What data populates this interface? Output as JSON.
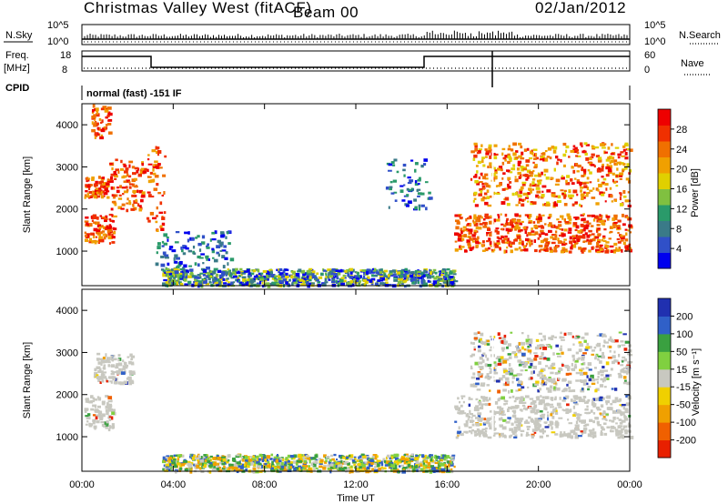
{
  "header": {
    "title": "Christmas Valley West (fitACF)",
    "beam": "Beam 00",
    "date": "02/Jan/2012"
  },
  "mini_panels": {
    "nsky_label": "N.Sky",
    "nsky_ticks": [
      "10^5",
      "10^0"
    ],
    "nsearch_label": "N.Search",
    "nsearch_ticks": [
      "10^5",
      "10^0"
    ],
    "freq_label_1": "Freq.",
    "freq_label_2": "[MHz]",
    "freq_ticks": [
      "18",
      "8"
    ],
    "nave_label": "Nave",
    "nave_ticks": [
      "60",
      "0"
    ],
    "cpid_label": "CPID",
    "cpid_text": "normal (fast) -151 IF"
  },
  "colorbars": {
    "power": {
      "label": "Power [dB]",
      "ticks": [
        "28",
        "24",
        "20",
        "16",
        "12",
        "8",
        "4"
      ],
      "colors": [
        "#0000ee",
        "#3050c8",
        "#3a7a88",
        "#2a9a6a",
        "#80c040",
        "#e0d000",
        "#f0a000",
        "#f07000",
        "#f03000",
        "#ee0000"
      ]
    },
    "velocity": {
      "label": "Velocity [m s⁻¹]",
      "ticks": [
        "200",
        "100",
        "50",
        "15",
        "-15",
        "-50",
        "-100",
        "-200"
      ],
      "colors": [
        "#2030b0",
        "#3060c8",
        "#3aa040",
        "#80d040",
        "#c8c8c0",
        "#f0d000",
        "#f0a000",
        "#f06000",
        "#e82000"
      ]
    }
  },
  "chart_data": [
    {
      "type": "heatmap",
      "name": "power",
      "xlabel": "",
      "ylabel": "Slant Range [km]",
      "xlim": [
        0,
        24
      ],
      "ylim": [
        180,
        4500
      ],
      "yticks": [
        "1000",
        "2000",
        "3000",
        "4000"
      ],
      "regions": [
        {
          "t": [
            0.1,
            1.4
          ],
          "r": [
            1200,
            1900
          ],
          "kind": "band"
        },
        {
          "t": [
            0.1,
            1.2
          ],
          "r": [
            2300,
            2800
          ],
          "kind": "band"
        },
        {
          "t": [
            0.4,
            1.2
          ],
          "r": [
            3700,
            4500
          ],
          "kind": "band"
        },
        {
          "t": [
            1.2,
            2.7
          ],
          "r": [
            2000,
            3200
          ],
          "kind": "band"
        },
        {
          "t": [
            2.8,
            3.6
          ],
          "r": [
            1500,
            3500
          ],
          "kind": "band"
        },
        {
          "t": [
            3.2,
            6.5
          ],
          "r": [
            500,
            1500
          ],
          "kind": "weak"
        },
        {
          "t": [
            13.3,
            15.2
          ],
          "r": [
            2000,
            3200
          ],
          "kind": "weak"
        },
        {
          "t": [
            16.3,
            24.0
          ],
          "r": [
            1000,
            1900
          ],
          "kind": "band"
        },
        {
          "t": [
            17.0,
            24.0
          ],
          "r": [
            2100,
            3600
          ],
          "kind": "streaks"
        },
        {
          "t": [
            3.5,
            16.3
          ],
          "r": [
            200,
            600
          ],
          "kind": "ground"
        }
      ]
    },
    {
      "type": "heatmap",
      "name": "velocity",
      "xlabel": "Time UT",
      "ylabel": "Slant Range [km]",
      "xlim": [
        0,
        24
      ],
      "ylim": [
        180,
        4500
      ],
      "xticks": [
        "00:00",
        "04:00",
        "08:00",
        "12:00",
        "16:00",
        "20:00",
        "00:00"
      ],
      "yticks": [
        "1000",
        "2000",
        "3000",
        "4000"
      ],
      "regions": [
        {
          "t": [
            0.1,
            1.4
          ],
          "r": [
            1200,
            2000
          ],
          "kind": "gray"
        },
        {
          "t": [
            0.5,
            2.2
          ],
          "r": [
            2300,
            3000
          ],
          "kind": "gray"
        },
        {
          "t": [
            16.3,
            24.0
          ],
          "r": [
            1000,
            2000
          ],
          "kind": "gray"
        },
        {
          "t": [
            17.0,
            24.0
          ],
          "r": [
            2100,
            3500
          ],
          "kind": "grayspeckle"
        },
        {
          "t": [
            3.5,
            16.3
          ],
          "r": [
            200,
            600
          ],
          "kind": "ground"
        }
      ]
    }
  ]
}
